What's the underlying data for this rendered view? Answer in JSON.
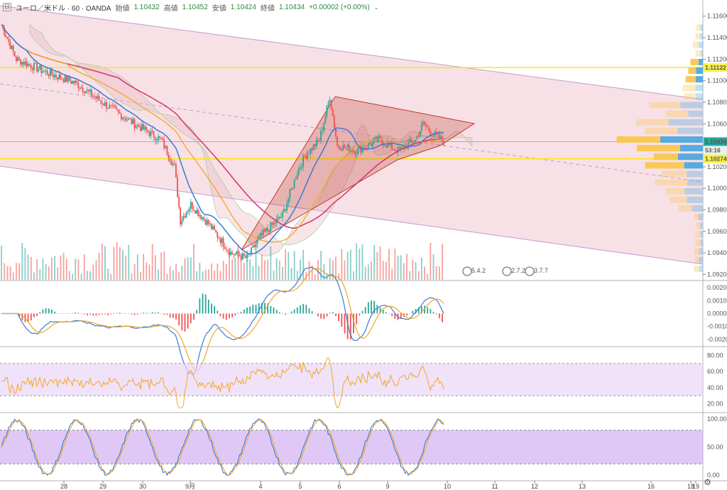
{
  "header": {
    "symbol": "ユーロ／米ドル · 60 · OANDA",
    "open_label": "始値",
    "open_value": "1.10432",
    "high_label": "高値",
    "high_value": "1.10452",
    "low_label": "安値",
    "low_value": "1.10424",
    "close_label": "終値",
    "close_value": "1.10434",
    "change": "+0.00002 (+0.00%)"
  },
  "colors": {
    "up": "#26a69a",
    "down": "#ef5350",
    "ma_blue": "#3a7bd5",
    "ma_red": "#d6336c",
    "ma_orange": "#f5a623",
    "yellow_line": "#ffe600",
    "channel": "#c39bd3",
    "triangle": "#c0392b",
    "profile_yellow": "#f9c74f",
    "profile_blue": "#4ea8de"
  },
  "price_axis": {
    "ticks": [
      "1.11600",
      "1.11400",
      "1.11200",
      "1.11000",
      "1.10800",
      "1.10600",
      "1.10400",
      "1.10200",
      "1.10000",
      "1.09800",
      "1.09600",
      "1.09400",
      "1.09200"
    ],
    "badges": [
      {
        "text": "1.11122",
        "kind": "level"
      },
      {
        "text": "1.10434",
        "kind": "price"
      },
      {
        "text": "53:16",
        "kind": "timer"
      },
      {
        "text": "1.10274",
        "kind": "level"
      }
    ]
  },
  "macd_axis": {
    "ticks": [
      "0.00200",
      "0.00100",
      "0.00000",
      "-0.00100",
      "-0.00200"
    ]
  },
  "rsi_axis": {
    "ticks": [
      "80.00",
      "60.00",
      "40.00",
      "20.00"
    ]
  },
  "stoch_axis": {
    "ticks": [
      "100.00",
      "50.00",
      "0.00"
    ]
  },
  "time_axis": {
    "labels": [
      "28",
      "29",
      "30",
      "9月",
      "4",
      "5",
      "6",
      "9",
      "10",
      "11",
      "12",
      "13",
      "16",
      "18",
      "19"
    ]
  },
  "events": [
    "5.4.2",
    "2.7.2.1",
    "3.7.7"
  ],
  "chart_data": {
    "type": "candlestick",
    "instrument": "ユーロ／米ドル",
    "interval": "60",
    "source": "OANDA",
    "price_ylim": [
      1.0915,
      1.1175
    ],
    "levels": [
      1.11122,
      1.10274
    ],
    "last_price": 1.10434,
    "indicators": [
      "MA",
      "Ichimoku",
      "Volume",
      "Volume Profile",
      "MACD",
      "RSI",
      "Stochastic"
    ],
    "rsi_band": [
      30,
      70
    ],
    "stoch_band": [
      20,
      80
    ]
  }
}
